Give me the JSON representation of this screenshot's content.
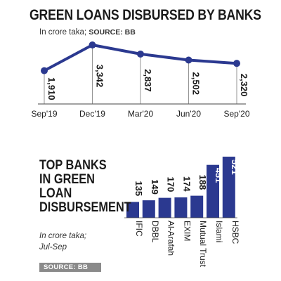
{
  "chart_data": [
    {
      "type": "line",
      "title": "GREEN LOANS DISBURSED BY BANKS",
      "subtitle": "In crore taka;",
      "source": "SOURCE: BB",
      "categories": [
        "Sep'19",
        "Dec'19",
        "Mar'20",
        "Jun'20",
        "Sep'20"
      ],
      "values": [
        1910,
        3342,
        2837,
        2502,
        2320
      ],
      "value_labels": [
        "1,910",
        "3,342",
        "2,837",
        "2,502",
        "2,320"
      ],
      "ylim": [
        1700,
        3500
      ],
      "color": "#2b3990"
    },
    {
      "type": "bar",
      "title_lines": [
        "TOP BANKS",
        "IN GREEN",
        "LOAN",
        "DISBURSEMENT"
      ],
      "subtitle_lines": [
        "In crore taka;",
        "Jul-Sep"
      ],
      "source": "SOURCE: BB",
      "categories": [
        "IFIC",
        "DBBL",
        "Al-Arafah",
        "EXIM",
        "Mutual Trust",
        "Islami",
        "HSBC"
      ],
      "values": [
        135,
        149,
        170,
        174,
        188,
        451,
        521
      ],
      "ylim": [
        0,
        521
      ],
      "color": "#2b3990"
    }
  ]
}
